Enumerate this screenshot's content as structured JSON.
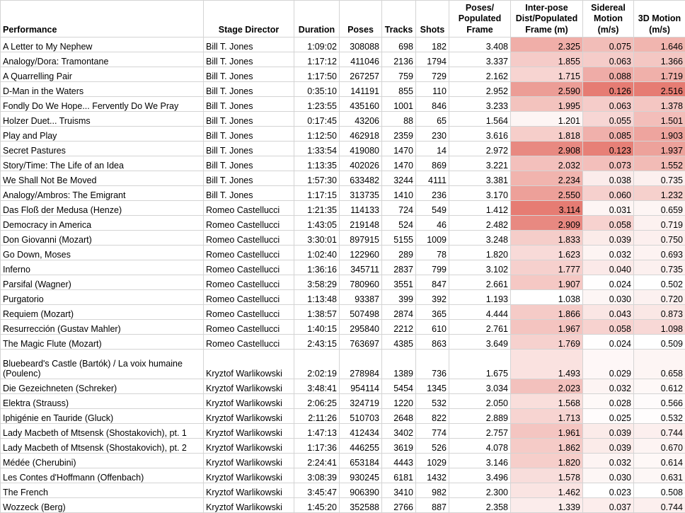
{
  "headers": {
    "performance": "Performance",
    "stage_director": "Stage Director",
    "duration": "Duration",
    "poses": "Poses",
    "tracks": "Tracks",
    "shots": "Shots",
    "poses_per_frame": "Poses/\nPopulated\nFrame",
    "interpose_dist": "Inter-pose\nDist/Populated\nFrame (m)",
    "sidereal_motion": "Sidereal\nMotion\n(m/s)",
    "motion_3d": "3D Motion\n(m/s)"
  },
  "heat_color": "#e67c73",
  "rows": [
    {
      "performance": "A Letter to My Nephew",
      "director": "Bill T. Jones",
      "duration": "1:09:02",
      "poses": "308088",
      "tracks": "698",
      "shots": "182",
      "ppf": "3.408",
      "dist": "2.325",
      "sidereal": "0.075",
      "motion3d": "1.646"
    },
    {
      "performance": "Analogy/Dora: Tramontane",
      "director": "Bill T. Jones",
      "duration": "1:17:12",
      "poses": "411046",
      "tracks": "2136",
      "shots": "1794",
      "ppf": "3.337",
      "dist": "1.855",
      "sidereal": "0.063",
      "motion3d": "1.366"
    },
    {
      "performance": "A Quarrelling Pair",
      "director": "Bill T. Jones",
      "duration": "1:17:50",
      "poses": "267257",
      "tracks": "759",
      "shots": "729",
      "ppf": "2.162",
      "dist": "1.715",
      "sidereal": "0.088",
      "motion3d": "1.719"
    },
    {
      "performance": "D-Man in the Waters",
      "director": "Bill T. Jones",
      "duration": "0:35:10",
      "poses": "141191",
      "tracks": "855",
      "shots": "110",
      "ppf": "2.952",
      "dist": "2.590",
      "sidereal": "0.126",
      "motion3d": "2.516"
    },
    {
      "performance": "Fondly Do We Hope... Fervently Do We Pray",
      "director": "Bill T. Jones",
      "duration": "1:23:55",
      "poses": "435160",
      "tracks": "1001",
      "shots": "846",
      "ppf": "3.233",
      "dist": "1.995",
      "sidereal": "0.063",
      "motion3d": "1.378"
    },
    {
      "performance": "Holzer Duet... Truisms",
      "director": "Bill T. Jones",
      "duration": "0:17:45",
      "poses": "43206",
      "tracks": "88",
      "shots": "65",
      "ppf": "1.564",
      "dist": "1.201",
      "sidereal": "0.055",
      "motion3d": "1.501"
    },
    {
      "performance": "Play and Play",
      "director": "Bill T. Jones",
      "duration": "1:12:50",
      "poses": "462918",
      "tracks": "2359",
      "shots": "230",
      "ppf": "3.616",
      "dist": "1.818",
      "sidereal": "0.085",
      "motion3d": "1.903"
    },
    {
      "performance": "Secret Pastures",
      "director": "Bill T. Jones",
      "duration": "1:33:54",
      "poses": "419080",
      "tracks": "1470",
      "shots": "14",
      "ppf": "2.972",
      "dist": "2.908",
      "sidereal": "0.123",
      "motion3d": "1.937"
    },
    {
      "performance": "Story/Time: The Life of an Idea",
      "director": "Bill T. Jones",
      "duration": "1:13:35",
      "poses": "402026",
      "tracks": "1470",
      "shots": "869",
      "ppf": "3.221",
      "dist": "2.032",
      "sidereal": "0.073",
      "motion3d": "1.552"
    },
    {
      "performance": "We Shall Not Be Moved",
      "director": "Bill T. Jones",
      "duration": "1:57:30",
      "poses": "633482",
      "tracks": "3244",
      "shots": "4111",
      "ppf": "3.381",
      "dist": "2.234",
      "sidereal": "0.038",
      "motion3d": "0.735"
    },
    {
      "performance": "Analogy/Ambros: The Emigrant",
      "director": "Bill T. Jones",
      "duration": "1:17:15",
      "poses": "313735",
      "tracks": "1410",
      "shots": "236",
      "ppf": "3.170",
      "dist": "2.550",
      "sidereal": "0.060",
      "motion3d": "1.232"
    },
    {
      "performance": "Das Floß der Medusa (Henze)",
      "director": "Romeo Castellucci",
      "duration": "1:21:35",
      "poses": "114133",
      "tracks": "724",
      "shots": "549",
      "ppf": "1.412",
      "dist": "3.114",
      "sidereal": "0.031",
      "motion3d": "0.659"
    },
    {
      "performance": "Democracy in America",
      "director": "Romeo Castellucci",
      "duration": "1:43:05",
      "poses": "219148",
      "tracks": "524",
      "shots": "46",
      "ppf": "2.482",
      "dist": "2.909",
      "sidereal": "0.058",
      "motion3d": "0.719"
    },
    {
      "performance": "Don Giovanni (Mozart)",
      "director": "Romeo Castellucci",
      "duration": "3:30:01",
      "poses": "897915",
      "tracks": "5155",
      "shots": "1009",
      "ppf": "3.248",
      "dist": "1.833",
      "sidereal": "0.039",
      "motion3d": "0.750"
    },
    {
      "performance": "Go Down, Moses",
      "director": "Romeo Castellucci",
      "duration": "1:02:40",
      "poses": "122960",
      "tracks": "289",
      "shots": "78",
      "ppf": "1.820",
      "dist": "1.623",
      "sidereal": "0.032",
      "motion3d": "0.693"
    },
    {
      "performance": "Inferno",
      "director": "Romeo Castellucci",
      "duration": "1:36:16",
      "poses": "345711",
      "tracks": "2837",
      "shots": "799",
      "ppf": "3.102",
      "dist": "1.777",
      "sidereal": "0.040",
      "motion3d": "0.735"
    },
    {
      "performance": "Parsifal (Wagner)",
      "director": "Romeo Castellucci",
      "duration": "3:58:29",
      "poses": "780960",
      "tracks": "3551",
      "shots": "847",
      "ppf": "2.661",
      "dist": "1.907",
      "sidereal": "0.024",
      "motion3d": "0.502"
    },
    {
      "performance": "Purgatorio",
      "director": "Romeo Castellucci",
      "duration": "1:13:48",
      "poses": "93387",
      "tracks": "399",
      "shots": "392",
      "ppf": "1.193",
      "dist": "1.038",
      "sidereal": "0.030",
      "motion3d": "0.720"
    },
    {
      "performance": "Requiem (Mozart)",
      "director": "Romeo Castellucci",
      "duration": "1:38:57",
      "poses": "507498",
      "tracks": "2874",
      "shots": "365",
      "ppf": "4.444",
      "dist": "1.866",
      "sidereal": "0.043",
      "motion3d": "0.873"
    },
    {
      "performance": "Resurrección (Gustav Mahler)",
      "director": "Romeo Castellucci",
      "duration": "1:40:15",
      "poses": "295840",
      "tracks": "2212",
      "shots": "610",
      "ppf": "2.761",
      "dist": "1.967",
      "sidereal": "0.058",
      "motion3d": "1.098"
    },
    {
      "performance": "The Magic Flute (Mozart)",
      "director": "Romeo Castellucci",
      "duration": "2:43:15",
      "poses": "763697",
      "tracks": "4385",
      "shots": "863",
      "ppf": "3.649",
      "dist": "1.769",
      "sidereal": "0.024",
      "motion3d": "0.509"
    },
    {
      "performance": "Bluebeard's Castle (Bartók) / La voix humaine (Poulenc)",
      "director": "Kryztof Warlikowski",
      "duration": "2:02:19",
      "poses": "278984",
      "tracks": "1389",
      "shots": "736",
      "ppf": "1.675",
      "dist": "1.493",
      "sidereal": "0.029",
      "motion3d": "0.658",
      "tall": true
    },
    {
      "performance": "Die Gezeichneten (Schreker)",
      "director": "Kryztof Warlikowski",
      "duration": "3:48:41",
      "poses": "954114",
      "tracks": "5454",
      "shots": "1345",
      "ppf": "3.034",
      "dist": "2.023",
      "sidereal": "0.032",
      "motion3d": "0.612"
    },
    {
      "performance": "Elektra (Strauss)",
      "director": "Kryztof Warlikowski",
      "duration": "2:06:25",
      "poses": "324719",
      "tracks": "1220",
      "shots": "532",
      "ppf": "2.050",
      "dist": "1.568",
      "sidereal": "0.028",
      "motion3d": "0.566"
    },
    {
      "performance": "Iphigénie en Tauride (Gluck)",
      "director": "Kryztof Warlikowski",
      "duration": "2:11:26",
      "poses": "510703",
      "tracks": "2648",
      "shots": "822",
      "ppf": "2.889",
      "dist": "1.713",
      "sidereal": "0.025",
      "motion3d": "0.532"
    },
    {
      "performance": "Lady Macbeth of Mtsensk (Shostakovich), pt. 1",
      "director": "Kryztof Warlikowski",
      "duration": "1:47:13",
      "poses": "412434",
      "tracks": "3402",
      "shots": "774",
      "ppf": "2.757",
      "dist": "1.961",
      "sidereal": "0.039",
      "motion3d": "0.744"
    },
    {
      "performance": "Lady Macbeth of Mtsensk (Shostakovich), pt. 2",
      "director": "Kryztof Warlikowski",
      "duration": "1:17:36",
      "poses": "446255",
      "tracks": "3619",
      "shots": "526",
      "ppf": "4.078",
      "dist": "1.862",
      "sidereal": "0.039",
      "motion3d": "0.670"
    },
    {
      "performance": "Médée (Cherubini)",
      "director": "Kryztof Warlikowski",
      "duration": "2:24:41",
      "poses": "653184",
      "tracks": "4443",
      "shots": "1029",
      "ppf": "3.146",
      "dist": "1.820",
      "sidereal": "0.032",
      "motion3d": "0.614"
    },
    {
      "performance": "Les Contes d'Hoffmann (Offenbach)",
      "director": "Kryztof Warlikowski",
      "duration": "3:08:39",
      "poses": "930245",
      "tracks": "6181",
      "shots": "1432",
      "ppf": "3.496",
      "dist": "1.578",
      "sidereal": "0.030",
      "motion3d": "0.631"
    },
    {
      "performance": "The French",
      "director": "Kryztof Warlikowski",
      "duration": "3:45:47",
      "poses": "906390",
      "tracks": "3410",
      "shots": "982",
      "ppf": "2.300",
      "dist": "1.462",
      "sidereal": "0.023",
      "motion3d": "0.508"
    },
    {
      "performance": "Wozzeck (Berg)",
      "director": "Kryztof Warlikowski",
      "duration": "1:45:20",
      "poses": "352588",
      "tracks": "2766",
      "shots": "887",
      "ppf": "2.358",
      "dist": "1.339",
      "sidereal": "0.037",
      "motion3d": "0.744"
    }
  ]
}
